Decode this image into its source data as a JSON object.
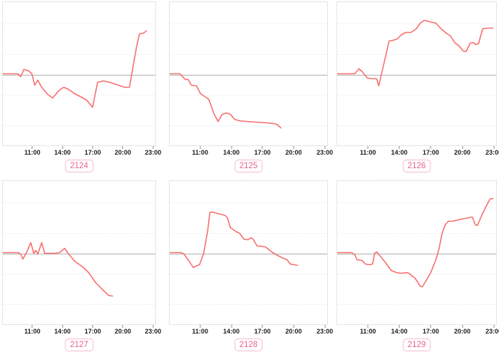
{
  "colors": {
    "page_background": "#ffffff",
    "series_line": "#f76e6e",
    "zero_baseline": "#aeaeae",
    "gridline": "#ebebeb",
    "chart_border": "#e4e4e4",
    "tick_text": "#1d1d1d",
    "badge_text": "#e8638f",
    "badge_border": "#f7bad0",
    "faint_text": "#c6c6c6"
  },
  "fragments": [
    {
      "text": "····"
    },
    {
      "text": "···"
    },
    {
      "text": "·· ·· ···· ·· ··· ····"
    },
    {
      "text": "··"
    }
  ],
  "chart_data": {
    "type": "line",
    "layout": "2x3 grid of sparkline-style line charts",
    "grid": true,
    "legend": "none",
    "series_color": "#f76e6e",
    "x_axis": {
      "tick_labels": [
        "11:00",
        "14:00",
        "17:00",
        "20:00",
        "23:00"
      ],
      "tick_hours": [
        11,
        14,
        17,
        20,
        23
      ],
      "domain_hours": [
        8.0,
        23.3
      ]
    },
    "y_axis": {
      "visible": false,
      "baseline_value": 0,
      "ylim": [
        -101.5,
        101.5
      ]
    },
    "charts": [
      {
        "label": "2124",
        "points": [
          [
            8,
            0
          ],
          [
            9.5,
            0
          ],
          [
            9.8,
            -4
          ],
          [
            10.1,
            6
          ],
          [
            10.6,
            4
          ],
          [
            10.9,
            0
          ],
          [
            11.2,
            -16
          ],
          [
            11.5,
            -9
          ],
          [
            11.9,
            -19
          ],
          [
            12.5,
            -29
          ],
          [
            13,
            -34
          ],
          [
            13.6,
            -24
          ],
          [
            14.1,
            -19
          ],
          [
            14.6,
            -22
          ],
          [
            15.2,
            -28
          ],
          [
            15.9,
            -33
          ],
          [
            16.4,
            -37
          ],
          [
            17,
            -47
          ],
          [
            17.5,
            -12
          ],
          [
            18.1,
            -10
          ],
          [
            18.7,
            -12
          ],
          [
            19.6,
            -16
          ],
          [
            20.2,
            -19
          ],
          [
            20.7,
            -19
          ],
          [
            21.4,
            37
          ],
          [
            21.7,
            56
          ],
          [
            22.1,
            57
          ],
          [
            22.4,
            60
          ]
        ]
      },
      {
        "label": "2125",
        "points": [
          [
            8,
            0
          ],
          [
            9,
            0
          ],
          [
            9.2,
            -3
          ],
          [
            9.5,
            -8
          ],
          [
            9.8,
            -8
          ],
          [
            10.1,
            -16
          ],
          [
            10.6,
            -17
          ],
          [
            11,
            -28
          ],
          [
            11.5,
            -33
          ],
          [
            11.8,
            -36
          ],
          [
            12.3,
            -56
          ],
          [
            12.7,
            -67
          ],
          [
            13.1,
            -57
          ],
          [
            13.5,
            -55
          ],
          [
            13.9,
            -57
          ],
          [
            14.3,
            -64
          ],
          [
            14.8,
            -66
          ],
          [
            15.5,
            -67
          ],
          [
            16.5,
            -68
          ],
          [
            17.5,
            -69
          ],
          [
            18.2,
            -70
          ],
          [
            18.5,
            -72
          ],
          [
            18.8,
            -76
          ]
        ]
      },
      {
        "label": "2126",
        "points": [
          [
            8,
            0
          ],
          [
            9.7,
            0
          ],
          [
            10.1,
            7
          ],
          [
            10.4,
            3
          ],
          [
            10.9,
            -6
          ],
          [
            11.4,
            -7
          ],
          [
            11.8,
            -7
          ],
          [
            12,
            -17
          ],
          [
            13,
            46
          ],
          [
            13.4,
            47
          ],
          [
            13.8,
            49
          ],
          [
            14.2,
            55
          ],
          [
            14.6,
            58
          ],
          [
            15.1,
            58
          ],
          [
            15.6,
            63
          ],
          [
            16,
            71
          ],
          [
            16.4,
            75
          ],
          [
            16.9,
            73
          ],
          [
            17.5,
            71
          ],
          [
            18,
            63
          ],
          [
            18.5,
            57
          ],
          [
            18.9,
            53
          ],
          [
            19.3,
            44
          ],
          [
            19.8,
            38
          ],
          [
            20.1,
            32
          ],
          [
            20.4,
            31
          ],
          [
            20.8,
            43
          ],
          [
            21.1,
            44
          ],
          [
            21.3,
            41
          ],
          [
            21.6,
            42
          ],
          [
            22,
            63
          ],
          [
            22.4,
            64
          ],
          [
            23,
            64
          ]
        ]
      },
      {
        "label": "2127",
        "points": [
          [
            8,
            0
          ],
          [
            9.5,
            0
          ],
          [
            9.8,
            -2
          ],
          [
            10,
            -9
          ],
          [
            10.4,
            1
          ],
          [
            10.8,
            14
          ],
          [
            11.1,
            -1
          ],
          [
            11.3,
            3
          ],
          [
            11.5,
            -2
          ],
          [
            11.9,
            14
          ],
          [
            12.2,
            -1
          ],
          [
            12.7,
            -1
          ],
          [
            13.2,
            -1
          ],
          [
            13.7,
            0
          ],
          [
            14.2,
            6
          ],
          [
            14.6,
            -2
          ],
          [
            15.2,
            -12
          ],
          [
            16,
            -20
          ],
          [
            16.6,
            -28
          ],
          [
            17.3,
            -42
          ],
          [
            18,
            -52
          ],
          [
            18.6,
            -60
          ],
          [
            19,
            -61
          ]
        ]
      },
      {
        "label": "2128",
        "points": [
          [
            8,
            0
          ],
          [
            9.1,
            0
          ],
          [
            9.4,
            -2
          ],
          [
            9.9,
            -12
          ],
          [
            10.3,
            -21
          ],
          [
            10.7,
            -18
          ],
          [
            10.9,
            -17
          ],
          [
            11.3,
            -1
          ],
          [
            11.7,
            31
          ],
          [
            11.9,
            56
          ],
          [
            12.1,
            57
          ],
          [
            12.9,
            54
          ],
          [
            13.4,
            52
          ],
          [
            13.6,
            49
          ],
          [
            13.9,
            35
          ],
          [
            14.4,
            30
          ],
          [
            14.8,
            27
          ],
          [
            15.2,
            19
          ],
          [
            15.6,
            18
          ],
          [
            15.9,
            21
          ],
          [
            16.1,
            19
          ],
          [
            16.5,
            9
          ],
          [
            16.9,
            9
          ],
          [
            17.3,
            8
          ],
          [
            18,
            0
          ],
          [
            18.5,
            -4
          ],
          [
            18.9,
            -7
          ],
          [
            19.4,
            -10
          ],
          [
            19.7,
            -16
          ],
          [
            20.1,
            -17
          ],
          [
            20.4,
            -18
          ]
        ]
      },
      {
        "label": "2129",
        "points": [
          [
            8,
            0
          ],
          [
            9.4,
            0
          ],
          [
            9.7,
            -3
          ],
          [
            9.9,
            -10
          ],
          [
            10.4,
            -11
          ],
          [
            10.7,
            -16
          ],
          [
            11.1,
            -17
          ],
          [
            11.4,
            -16
          ],
          [
            11.6,
            -1
          ],
          [
            11.8,
            1
          ],
          [
            12.6,
            -13
          ],
          [
            13.2,
            -25
          ],
          [
            13.7,
            -28
          ],
          [
            14.1,
            -29
          ],
          [
            14.7,
            -28
          ],
          [
            14.9,
            -29
          ],
          [
            15.5,
            -36
          ],
          [
            16,
            -47
          ],
          [
            16.2,
            -48
          ],
          [
            16.7,
            -36
          ],
          [
            17,
            -28
          ],
          [
            17.5,
            -10
          ],
          [
            17.8,
            5
          ],
          [
            18.1,
            27
          ],
          [
            18.4,
            39
          ],
          [
            18.7,
            44
          ],
          [
            19.1,
            44
          ],
          [
            19.7,
            46
          ],
          [
            20.3,
            48
          ],
          [
            20.7,
            49
          ],
          [
            21,
            50
          ],
          [
            21.3,
            39
          ],
          [
            21.5,
            38
          ],
          [
            21.9,
            52
          ],
          [
            22.3,
            64
          ],
          [
            22.7,
            75
          ],
          [
            23,
            76
          ]
        ]
      }
    ]
  }
}
